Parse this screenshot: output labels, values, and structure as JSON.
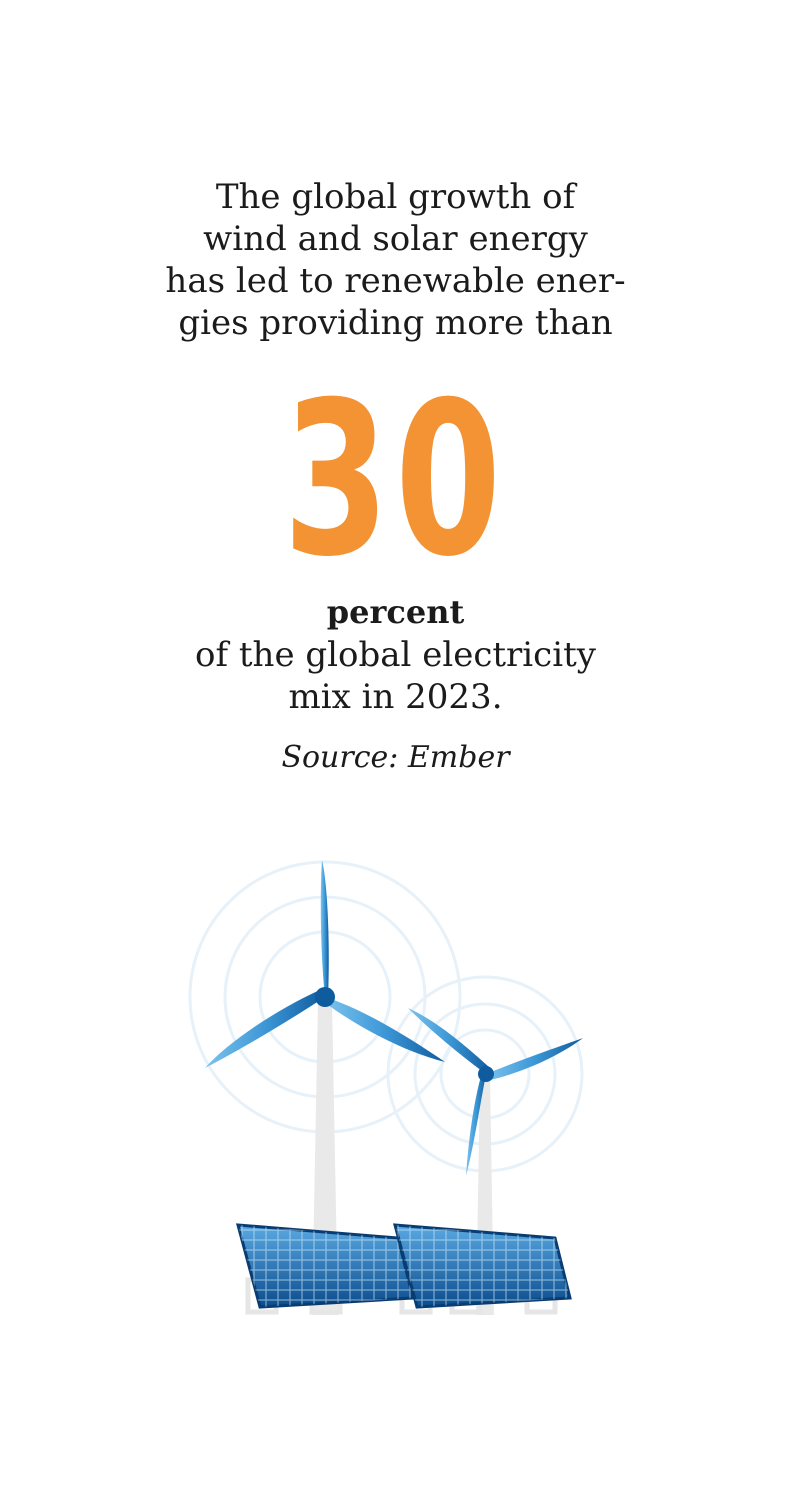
{
  "intro": {
    "lines": [
      "The global growth of",
      "wind and solar energy",
      "has led to renewable ener-",
      "gies providing more than"
    ]
  },
  "highlight": {
    "value": "30",
    "color": "#F39333"
  },
  "unit_label": "percent",
  "description": {
    "lines": [
      "of the global electricity",
      "mix in 2023."
    ]
  },
  "source": "Source: Ember",
  "illustration": {
    "icons": [
      "wind-turbine-icon",
      "wind-turbine-icon",
      "solar-panel-icon",
      "solar-panel-icon"
    ],
    "colors": {
      "blade_light": "#4FA8E0",
      "blade_dark": "#0E5C9E",
      "panel_light": "#3C8FD1",
      "panel_dark": "#0B4C8C",
      "tower": "#E9E9EA"
    }
  }
}
